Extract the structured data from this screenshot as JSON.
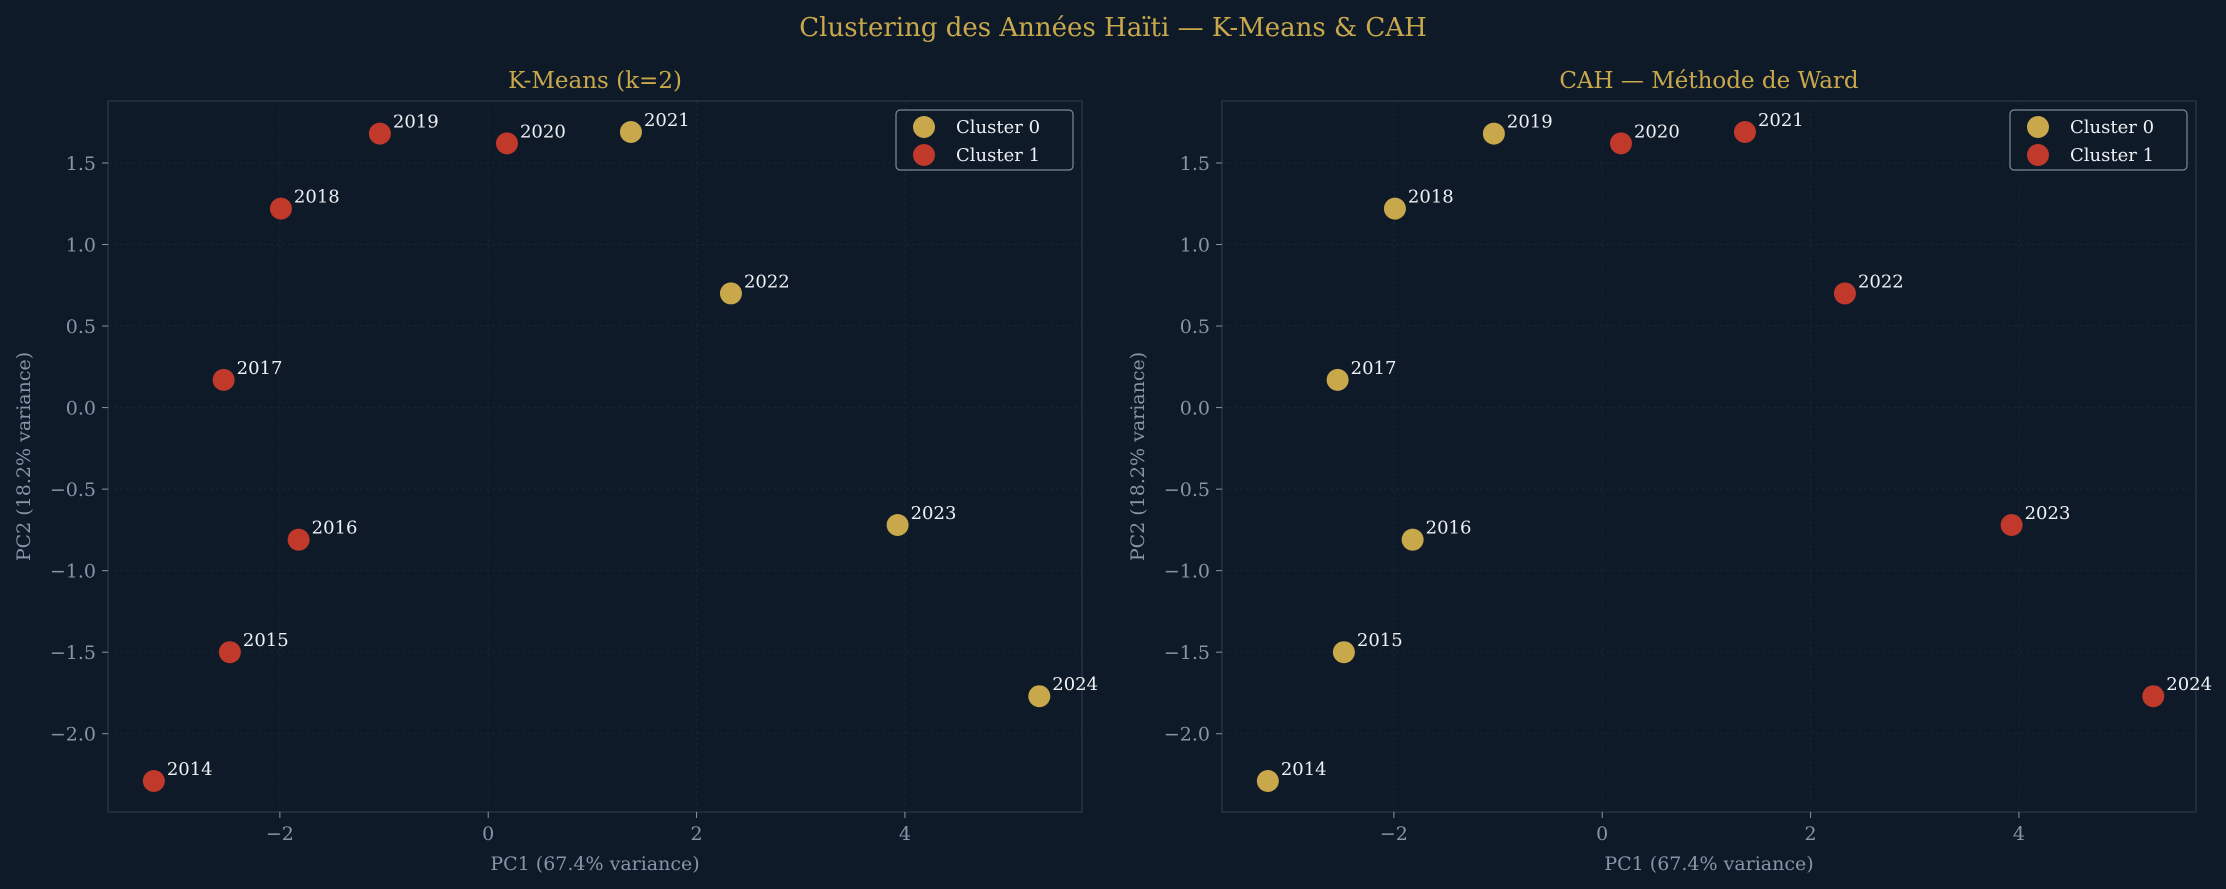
{
  "figure": {
    "suptitle": "Clustering des Années Haïti — K-Means & CAH"
  },
  "colors": {
    "background": "#0f1a29",
    "axes_face": "#0f1a29",
    "spine": "#2a3749",
    "grid": "#17243a",
    "title": "#c8a84b",
    "axis_text": "#8795a8",
    "annotation_text": "#eef0f4",
    "cluster_0": "#c8a84b",
    "cluster_1": "#c0392b",
    "legend_border": "#7e8896"
  },
  "chart_data": [
    {
      "type": "scatter",
      "title": "K-Means (k=2)",
      "xlabel": "PC1 (67.4% variance)",
      "ylabel": "PC2 (18.2% variance)",
      "xlim": [
        -3.65,
        5.7
      ],
      "ylim": [
        -2.48,
        1.88
      ],
      "xticks": [
        -2,
        0,
        2,
        4
      ],
      "xtick_labels": [
        "−2",
        "0",
        "2",
        "4"
      ],
      "yticks": [
        -2.0,
        -1.5,
        -1.0,
        -0.5,
        0.0,
        0.5,
        1.0,
        1.5
      ],
      "ytick_labels": [
        "−2.0",
        "−1.5",
        "−1.0",
        "−0.5",
        "0.0",
        "0.5",
        "1.0",
        "1.5"
      ],
      "grid": true,
      "legend_position": "upper right",
      "legend": [
        {
          "label": "Cluster 0",
          "cluster": 0
        },
        {
          "label": "Cluster 1",
          "cluster": 1
        }
      ],
      "points": [
        {
          "label": "2014",
          "x": -3.21,
          "y": -2.29,
          "cluster": 1
        },
        {
          "label": "2015",
          "x": -2.48,
          "y": -1.5,
          "cluster": 1
        },
        {
          "label": "2016",
          "x": -1.82,
          "y": -0.81,
          "cluster": 1
        },
        {
          "label": "2017",
          "x": -2.54,
          "y": 0.17,
          "cluster": 1
        },
        {
          "label": "2018",
          "x": -1.99,
          "y": 1.22,
          "cluster": 1
        },
        {
          "label": "2019",
          "x": -1.04,
          "y": 1.68,
          "cluster": 1
        },
        {
          "label": "2020",
          "x": 0.18,
          "y": 1.62,
          "cluster": 1
        },
        {
          "label": "2021",
          "x": 1.37,
          "y": 1.69,
          "cluster": 0
        },
        {
          "label": "2022",
          "x": 2.33,
          "y": 0.7,
          "cluster": 0
        },
        {
          "label": "2023",
          "x": 3.93,
          "y": -0.72,
          "cluster": 0
        },
        {
          "label": "2024",
          "x": 5.29,
          "y": -1.77,
          "cluster": 0
        }
      ]
    },
    {
      "type": "scatter",
      "title": "CAH — Méthode de Ward",
      "xlabel": "PC1 (67.4% variance)",
      "ylabel": "PC2 (18.2% variance)",
      "xlim": [
        -3.65,
        5.7
      ],
      "ylim": [
        -2.48,
        1.88
      ],
      "xticks": [
        -2,
        0,
        2,
        4
      ],
      "xtick_labels": [
        "−2",
        "0",
        "2",
        "4"
      ],
      "yticks": [
        -2.0,
        -1.5,
        -1.0,
        -0.5,
        0.0,
        0.5,
        1.0,
        1.5
      ],
      "ytick_labels": [
        "−2.0",
        "−1.5",
        "−1.0",
        "−0.5",
        "0.0",
        "0.5",
        "1.0",
        "1.5"
      ],
      "grid": true,
      "legend_position": "upper right",
      "legend": [
        {
          "label": "Cluster 0",
          "cluster": 0
        },
        {
          "label": "Cluster 1",
          "cluster": 1
        }
      ],
      "points": [
        {
          "label": "2014",
          "x": -3.21,
          "y": -2.29,
          "cluster": 0
        },
        {
          "label": "2015",
          "x": -2.48,
          "y": -1.5,
          "cluster": 0
        },
        {
          "label": "2016",
          "x": -1.82,
          "y": -0.81,
          "cluster": 0
        },
        {
          "label": "2017",
          "x": -2.54,
          "y": 0.17,
          "cluster": 0
        },
        {
          "label": "2018",
          "x": -1.99,
          "y": 1.22,
          "cluster": 0
        },
        {
          "label": "2019",
          "x": -1.04,
          "y": 1.68,
          "cluster": 0
        },
        {
          "label": "2020",
          "x": 0.18,
          "y": 1.62,
          "cluster": 1
        },
        {
          "label": "2021",
          "x": 1.37,
          "y": 1.69,
          "cluster": 1
        },
        {
          "label": "2022",
          "x": 2.33,
          "y": 0.7,
          "cluster": 1
        },
        {
          "label": "2023",
          "x": 3.93,
          "y": -0.72,
          "cluster": 1
        },
        {
          "label": "2024",
          "x": 5.29,
          "y": -1.77,
          "cluster": 1
        }
      ]
    }
  ]
}
